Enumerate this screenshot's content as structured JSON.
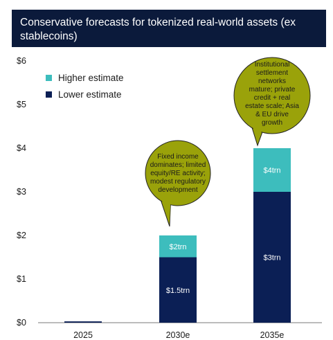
{
  "header": {
    "title": "Conservative forecasts for tokenized real-world assets (ex stablecoins)"
  },
  "colors": {
    "header_bg": "#0b1a3b",
    "lower": "#0b1f55",
    "higher": "#3dbdbd",
    "callout": "#9aa20a"
  },
  "chart_data": {
    "type": "bar",
    "stacked": true,
    "categories": [
      "2025",
      "2030e",
      "2035e"
    ],
    "series": [
      {
        "name": "Lower estimate",
        "values": [
          0.03,
          1.5,
          3
        ],
        "labels": [
          "",
          "$1.5trn",
          "$3trn"
        ]
      },
      {
        "name": "Higher estimate",
        "values": [
          0,
          0.5,
          1
        ],
        "labels": [
          "",
          "$2trn",
          "$4trn"
        ]
      }
    ],
    "ylim": [
      0,
      6
    ],
    "yticks": [
      "$0",
      "$1",
      "$2",
      "$3",
      "$4",
      "$5",
      "$6"
    ],
    "ytick_values": [
      0,
      1,
      2,
      3,
      4,
      5,
      6
    ],
    "grid": false,
    "legend": "top-left",
    "annotations": [
      {
        "category": "2030e",
        "text": [
          "Fixed income",
          "dominates; limited",
          "equity/RE activity;",
          "modest regulatory",
          "development"
        ]
      },
      {
        "category": "2035e",
        "text": [
          "Institutional",
          "settlement",
          "networks",
          "mature; private",
          "credit + real",
          "estate scale; Asia",
          "& EU drive",
          "growth"
        ]
      }
    ]
  }
}
